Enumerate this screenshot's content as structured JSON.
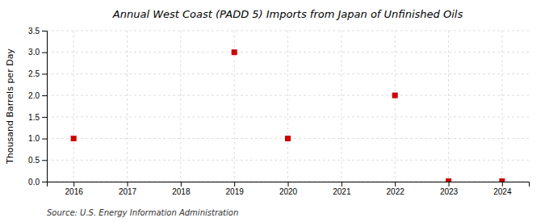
{
  "chart_data": {
    "type": "scatter",
    "title": "Annual West Coast (PADD 5) Imports from Japan of Unfinished Oils",
    "y_label": "Thousand Barrels per Day",
    "source": "Source: U.S. Energy Information Administration",
    "x": [
      2016,
      2019,
      2020,
      2022,
      2023,
      2024
    ],
    "values": [
      1.0,
      3.0,
      1.0,
      2.0,
      0.01,
      0.01
    ],
    "color": "#cc0000",
    "marker": "square",
    "xlim": [
      2015.5,
      2024.5
    ],
    "ylim": [
      0.0,
      3.5
    ],
    "xticks": [
      2016,
      2017,
      2018,
      2019,
      2020,
      2021,
      2022,
      2023,
      2024
    ],
    "yticks": [
      {
        "value": 0.0,
        "label": "0.0"
      },
      0.5,
      {
        "value": 1.0,
        "label": "1.0"
      },
      1.5,
      {
        "value": 2.0,
        "label": "2.0"
      },
      2.5,
      {
        "value": 3.0,
        "label": "3.0"
      },
      3.5
    ],
    "grid": true
  }
}
